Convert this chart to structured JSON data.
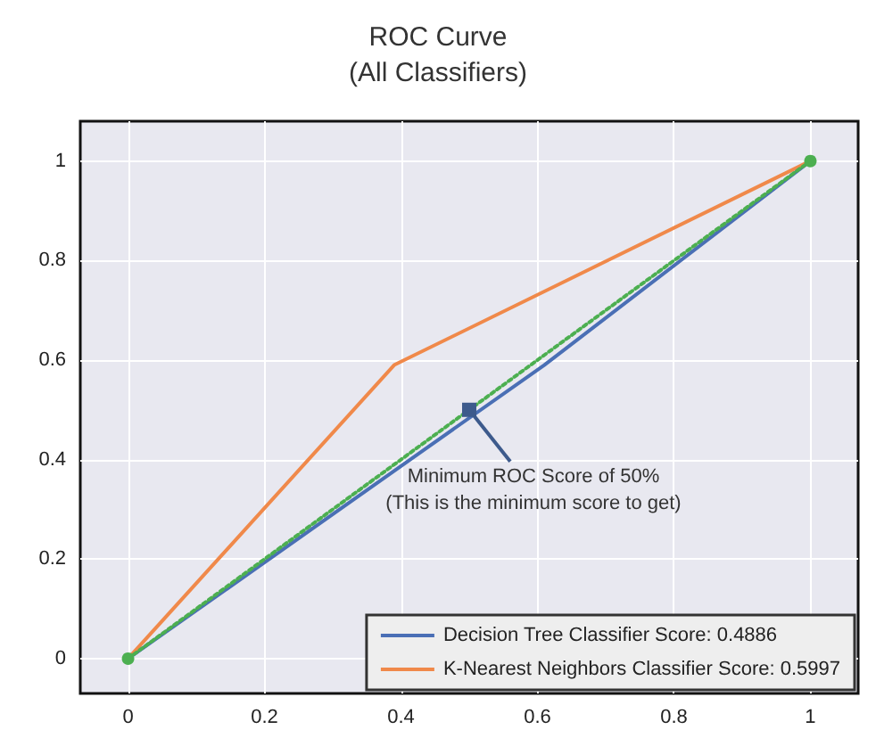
{
  "chart_data": {
    "type": "line",
    "title": "ROC Curve\n(All Classifiers)",
    "series": [
      {
        "name": "Decision Tree Classifier Score: 0.4886",
        "color": "#4a6fb5",
        "x": [
          0,
          0.61,
          1
        ],
        "values": [
          0,
          0.59,
          1
        ],
        "marker": "none",
        "line_style": "solid"
      },
      {
        "name": "K-Nearest Neighbors Classifier Score: 0.5997",
        "color": "#f0894a",
        "x": [
          0,
          0.39,
          1
        ],
        "values": [
          0,
          0.59,
          1
        ],
        "marker": "none",
        "line_style": "solid"
      },
      {
        "color": "#4caf50",
        "x": [
          0,
          1
        ],
        "values": [
          0,
          1
        ],
        "marker": "circle",
        "line_style": "dotted"
      }
    ],
    "annotations": [
      {
        "text": "Minimum ROC Score of 50%\n(This is the minimum score to get)",
        "x": 0.5,
        "y": 0.5
      }
    ],
    "xlim": [
      -0.07,
      1.07
    ],
    "ylim": [
      -0.07,
      1.08
    ],
    "xticks": [
      0,
      0.2,
      0.4,
      0.6,
      0.8,
      1
    ],
    "yticks": [
      0,
      0.2,
      0.4,
      0.6,
      0.8,
      1
    ],
    "grid": true,
    "legend": "bottom right"
  }
}
